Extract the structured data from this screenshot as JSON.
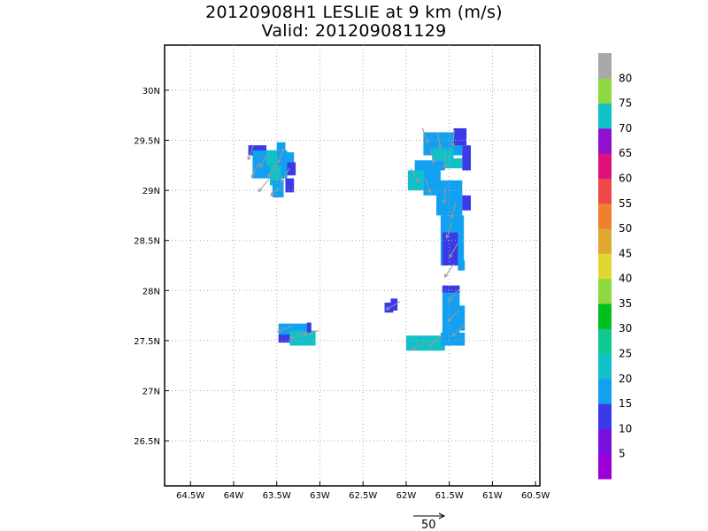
{
  "title": "20120908H1 LESLIE at 9 km (m/s)",
  "subtitle": "Valid: 201209081129",
  "map": {
    "lon_range": [
      -64.8,
      -60.45
    ],
    "lat_range": [
      26.05,
      30.45
    ],
    "x_ticks": [
      {
        "value": -64.5,
        "label": "64.5W"
      },
      {
        "value": -64,
        "label": "64W"
      },
      {
        "value": -63.5,
        "label": "63.5W"
      },
      {
        "value": -63,
        "label": "63W"
      },
      {
        "value": -62.5,
        "label": "62.5W"
      },
      {
        "value": -62,
        "label": "62W"
      },
      {
        "value": -61.5,
        "label": "61.5W"
      },
      {
        "value": -61,
        "label": "61W"
      },
      {
        "value": -60.5,
        "label": "60.5W"
      }
    ],
    "y_ticks": [
      {
        "value": 26.5,
        "label": "26.5N"
      },
      {
        "value": 27,
        "label": "27N"
      },
      {
        "value": 27.5,
        "label": "27.5N"
      },
      {
        "value": 28,
        "label": "28N"
      },
      {
        "value": 28.5,
        "label": "28.5N"
      },
      {
        "value": 29,
        "label": "29N"
      },
      {
        "value": 29.5,
        "label": "29.5N"
      },
      {
        "value": 30,
        "label": "30N"
      }
    ],
    "grid": "dotted",
    "vector_color": "#9a9a9a",
    "wind_cells": [
      {
        "lon": -63.83,
        "lat": 29.35,
        "lon2": -63.62,
        "lat2": 29.45,
        "color": "#3a3ae8"
      },
      {
        "lon": -63.78,
        "lat": 29.12,
        "lon2": -63.38,
        "lat2": 29.4,
        "color": "#12a0f0"
      },
      {
        "lon": -63.58,
        "lat": 29.05,
        "lon2": -63.45,
        "lat2": 29.25,
        "color": "#12c0c8"
      },
      {
        "lon": -63.55,
        "lat": 28.93,
        "lon2": -63.42,
        "lat2": 29.1,
        "color": "#12a0f0"
      },
      {
        "lon": -63.45,
        "lat": 29.15,
        "lon2": -63.3,
        "lat2": 29.38,
        "color": "#12a0f0"
      },
      {
        "lon": -63.38,
        "lat": 29.15,
        "lon2": -63.28,
        "lat2": 29.28,
        "color": "#3a3ae8"
      },
      {
        "lon": -63.4,
        "lat": 28.98,
        "lon2": -63.3,
        "lat2": 29.12,
        "color": "#3a3ae8"
      },
      {
        "lon": -63.5,
        "lat": 29.4,
        "lon2": -63.4,
        "lat2": 29.48,
        "color": "#12a0f0"
      },
      {
        "lon": -63.62,
        "lat": 29.25,
        "lon2": -63.5,
        "lat2": 29.4,
        "color": "#12c0c8"
      },
      {
        "lon": -61.8,
        "lat": 29.35,
        "lon2": -61.35,
        "lat2": 29.58,
        "color": "#12a0f0"
      },
      {
        "lon": -61.7,
        "lat": 29.3,
        "lon2": -61.45,
        "lat2": 29.42,
        "color": "#12c0c8"
      },
      {
        "lon": -61.45,
        "lat": 29.45,
        "lon2": -61.3,
        "lat2": 29.62,
        "color": "#3a3ae8"
      },
      {
        "lon": -61.35,
        "lat": 29.2,
        "lon2": -61.25,
        "lat2": 29.45,
        "color": "#3a3ae8"
      },
      {
        "lon": -61.55,
        "lat": 29.22,
        "lon2": -61.35,
        "lat2": 29.32,
        "color": "#12c0c8"
      },
      {
        "lon": -61.9,
        "lat": 29.2,
        "lon2": -61.55,
        "lat2": 29.3,
        "color": "#12a0f0"
      },
      {
        "lon": -61.98,
        "lat": 29.0,
        "lon2": -61.8,
        "lat2": 29.2,
        "color": "#12c0c8"
      },
      {
        "lon": -61.8,
        "lat": 28.95,
        "lon2": -61.6,
        "lat2": 29.2,
        "color": "#12a0f0"
      },
      {
        "lon": -61.65,
        "lat": 28.75,
        "lon2": -61.35,
        "lat2": 29.1,
        "color": "#12a0f0"
      },
      {
        "lon": -61.35,
        "lat": 28.8,
        "lon2": -61.25,
        "lat2": 28.95,
        "color": "#3a3ae8"
      },
      {
        "lon": -61.6,
        "lat": 28.25,
        "lon2": -61.33,
        "lat2": 28.75,
        "color": "#12a0f0"
      },
      {
        "lon": -61.58,
        "lat": 28.25,
        "lon2": -61.4,
        "lat2": 28.58,
        "color": "#3a3ae8"
      },
      {
        "lon": -61.4,
        "lat": 28.2,
        "lon2": -61.32,
        "lat2": 28.3,
        "color": "#12a0f0"
      },
      {
        "lon": -61.58,
        "lat": 27.55,
        "lon2": -61.38,
        "lat2": 28.05,
        "color": "#12a0f0"
      },
      {
        "lon": -61.58,
        "lat": 27.98,
        "lon2": -61.38,
        "lat2": 28.05,
        "color": "#3a3ae8"
      },
      {
        "lon": -61.4,
        "lat": 27.6,
        "lon2": -61.32,
        "lat2": 27.85,
        "color": "#12a0f0"
      },
      {
        "lon": -62.0,
        "lat": 27.4,
        "lon2": -61.55,
        "lat2": 27.55,
        "color": "#12c0c8"
      },
      {
        "lon": -61.6,
        "lat": 27.45,
        "lon2": -61.32,
        "lat2": 27.58,
        "color": "#12a0f0"
      },
      {
        "lon": -62.18,
        "lat": 27.8,
        "lon2": -62.1,
        "lat2": 27.92,
        "color": "#3a3ae8"
      },
      {
        "lon": -62.25,
        "lat": 27.78,
        "lon2": -62.15,
        "lat2": 27.88,
        "color": "#3a3ae8"
      },
      {
        "lon": -63.48,
        "lat": 27.55,
        "lon2": -63.1,
        "lat2": 27.67,
        "color": "#12a0f0"
      },
      {
        "lon": -63.35,
        "lat": 27.45,
        "lon2": -63.05,
        "lat2": 27.6,
        "color": "#12c0c8"
      },
      {
        "lon": -63.48,
        "lat": 27.48,
        "lon2": -63.35,
        "lat2": 27.56,
        "color": "#3a3ae8"
      },
      {
        "lon": -63.15,
        "lat": 27.58,
        "lon2": -63.1,
        "lat2": 27.68,
        "color": "#3a3ae8"
      }
    ],
    "wind_vectors": [
      {
        "lon": -63.8,
        "lat": 29.38,
        "dir": 200
      },
      {
        "lon": -63.65,
        "lat": 29.3,
        "dir": 210
      },
      {
        "lon": -63.55,
        "lat": 29.2,
        "dir": 215
      },
      {
        "lon": -63.45,
        "lat": 29.35,
        "dir": 200
      },
      {
        "lon": -63.65,
        "lat": 29.05,
        "dir": 220
      },
      {
        "lon": -63.5,
        "lat": 29.0,
        "dir": 230
      },
      {
        "lon": -63.4,
        "lat": 29.15,
        "dir": 210
      },
      {
        "lon": -63.75,
        "lat": 29.2,
        "dir": 205
      },
      {
        "lon": -61.78,
        "lat": 29.55,
        "dir": 160
      },
      {
        "lon": -61.62,
        "lat": 29.5,
        "dir": 170
      },
      {
        "lon": -61.45,
        "lat": 29.52,
        "dir": 185
      },
      {
        "lon": -61.7,
        "lat": 29.35,
        "dir": 165
      },
      {
        "lon": -61.55,
        "lat": 29.3,
        "dir": 180
      },
      {
        "lon": -61.9,
        "lat": 29.15,
        "dir": 150
      },
      {
        "lon": -61.75,
        "lat": 29.05,
        "dir": 160
      },
      {
        "lon": -61.55,
        "lat": 28.95,
        "dir": 185
      },
      {
        "lon": -61.45,
        "lat": 28.8,
        "dir": 195
      },
      {
        "lon": -61.5,
        "lat": 28.6,
        "dir": 200
      },
      {
        "lon": -61.45,
        "lat": 28.4,
        "dir": 210
      },
      {
        "lon": -61.5,
        "lat": 28.2,
        "dir": 215
      },
      {
        "lon": -61.45,
        "lat": 27.95,
        "dir": 220
      },
      {
        "lon": -61.45,
        "lat": 27.75,
        "dir": 225
      },
      {
        "lon": -61.4,
        "lat": 27.6,
        "dir": 225
      },
      {
        "lon": -61.85,
        "lat": 27.45,
        "dir": 235
      },
      {
        "lon": -61.65,
        "lat": 27.5,
        "dir": 230
      },
      {
        "lon": -62.15,
        "lat": 27.85,
        "dir": 240
      },
      {
        "lon": -63.4,
        "lat": 27.62,
        "dir": 250
      },
      {
        "lon": -63.25,
        "lat": 27.55,
        "dir": 255
      },
      {
        "lon": -63.1,
        "lat": 27.58,
        "dir": 255
      }
    ]
  },
  "colorbar": {
    "levels": [
      "5",
      "10",
      "15",
      "20",
      "25",
      "30",
      "35",
      "40",
      "45",
      "50",
      "55",
      "60",
      "65",
      "70",
      "75",
      "80"
    ],
    "colors": [
      "#9a00d6",
      "#7a10e0",
      "#3a3ae8",
      "#12a0f0",
      "#12c0c8",
      "#10c890",
      "#00c020",
      "#90d840",
      "#e0d830",
      "#e0a830",
      "#f08030",
      "#f04848",
      "#e0107a",
      "#9010d0",
      "#12c0c8",
      "#90d840",
      "#a8a8a8"
    ]
  },
  "reference_vector": {
    "label": "50"
  }
}
